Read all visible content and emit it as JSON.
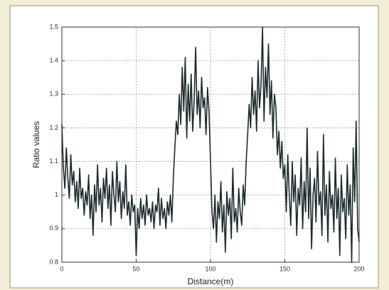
{
  "chart_data": {
    "type": "line",
    "xlabel": "Distance(m)",
    "ylabel": "Ratio values",
    "xlim": [
      0,
      200
    ],
    "xticks": [
      0,
      50,
      100,
      150,
      200
    ],
    "ylim": [
      0.8,
      1.5
    ],
    "yticks": [
      0.8,
      0.9,
      1,
      1.1,
      1.2,
      1.3,
      1.4,
      1.5
    ],
    "grid": true,
    "x": [
      0,
      1,
      2,
      3,
      4,
      5,
      6,
      7,
      8,
      9,
      10,
      11,
      12,
      13,
      14,
      15,
      16,
      17,
      18,
      19,
      20,
      21,
      22,
      23,
      24,
      25,
      26,
      27,
      28,
      29,
      30,
      31,
      32,
      33,
      34,
      35,
      36,
      37,
      38,
      39,
      40,
      41,
      42,
      43,
      44,
      45,
      46,
      47,
      48,
      49,
      50,
      51,
      52,
      53,
      54,
      55,
      56,
      57,
      58,
      59,
      60,
      61,
      62,
      63,
      64,
      65,
      66,
      67,
      68,
      69,
      70,
      71,
      72,
      73,
      74,
      75,
      76,
      77,
      78,
      79,
      80,
      81,
      82,
      83,
      84,
      85,
      86,
      87,
      88,
      89,
      90,
      91,
      92,
      93,
      94,
      95,
      96,
      97,
      98,
      99,
      100,
      101,
      102,
      103,
      104,
      105,
      106,
      107,
      108,
      109,
      110,
      111,
      112,
      113,
      114,
      115,
      116,
      117,
      118,
      119,
      120,
      121,
      122,
      123,
      124,
      125,
      126,
      127,
      128,
      129,
      130,
      131,
      132,
      133,
      134,
      135,
      136,
      137,
      138,
      139,
      140,
      141,
      142,
      143,
      144,
      145,
      146,
      147,
      148,
      149,
      150,
      151,
      152,
      153,
      154,
      155,
      156,
      157,
      158,
      159,
      160,
      161,
      162,
      163,
      164,
      165,
      166,
      167,
      168,
      169,
      170,
      171,
      172,
      173,
      174,
      175,
      176,
      177,
      178,
      179,
      180,
      181,
      182,
      183,
      184,
      185,
      186,
      187,
      188,
      189,
      190,
      191,
      192,
      193,
      194,
      195,
      196,
      197,
      198,
      199,
      200
    ],
    "series": [
      {
        "name": "ratio",
        "color": "#1c2b2b",
        "values": [
          1.21,
          1.08,
          1.02,
          1.14,
          1.05,
          0.99,
          1.12,
          1.03,
          1.07,
          0.98,
          1.04,
          0.96,
          1.08,
          0.99,
          1.02,
          0.94,
          1.01,
          0.97,
          1.06,
          0.93,
          1.0,
          0.88,
          1.03,
          0.95,
          1.09,
          0.97,
          1.02,
          0.92,
          1.05,
          0.99,
          1.08,
          0.96,
          1.03,
          0.91,
          1.07,
          1.0,
          0.95,
          1.1,
          0.98,
          1.04,
          0.93,
          1.01,
          0.96,
          1.09,
          0.94,
          0.98,
          0.91,
          1.0,
          0.95,
          0.97,
          0.82,
          0.96,
          0.9,
          0.99,
          0.93,
          0.97,
          0.91,
          1.0,
          0.94,
          0.96,
          0.92,
          0.98,
          0.9,
          0.97,
          0.95,
          1.02,
          0.91,
          0.99,
          0.93,
          0.96,
          0.9,
          0.98,
          0.94,
          1.0,
          0.92,
          1.05,
          1.14,
          1.22,
          1.18,
          1.3,
          1.21,
          1.38,
          1.25,
          1.41,
          1.17,
          1.33,
          1.22,
          1.36,
          1.19,
          1.28,
          1.44,
          1.24,
          1.31,
          1.2,
          1.35,
          1.26,
          1.29,
          1.18,
          1.32,
          1.25,
          1.1,
          0.95,
          0.9,
          1.0,
          0.86,
          0.98,
          0.93,
          1.04,
          0.89,
          0.97,
          0.83,
          1.01,
          0.94,
          0.99,
          0.87,
          1.08,
          0.92,
          0.96,
          0.89,
          1.02,
          0.95,
          0.91,
          1.03,
          0.97,
          1.1,
          1.18,
          1.27,
          1.2,
          1.35,
          1.24,
          1.31,
          1.19,
          1.4,
          1.26,
          1.33,
          1.5,
          1.22,
          1.38,
          1.29,
          1.45,
          1.24,
          1.34,
          1.17,
          1.3,
          1.26,
          1.12,
          1.19,
          1.08,
          1.16,
          1.05,
          1.09,
          0.95,
          1.12,
          1.0,
          0.91,
          1.1,
          0.98,
          1.06,
          0.88,
          1.02,
          0.97,
          1.11,
          0.9,
          1.04,
          0.95,
          1.2,
          0.93,
          1.08,
          0.84,
          1.0,
          1.05,
          0.92,
          1.13,
          0.97,
          1.01,
          0.88,
          1.18,
          0.94,
          1.03,
          0.86,
          1.07,
          0.96,
          1.0,
          0.89,
          1.11,
          0.93,
          1.02,
          0.82,
          1.06,
          0.95,
          0.99,
          0.87,
          1.09,
          0.94,
          1.03,
          0.8,
          1.14,
          0.98,
          1.22,
          0.9,
          0.86
        ]
      }
    ]
  }
}
